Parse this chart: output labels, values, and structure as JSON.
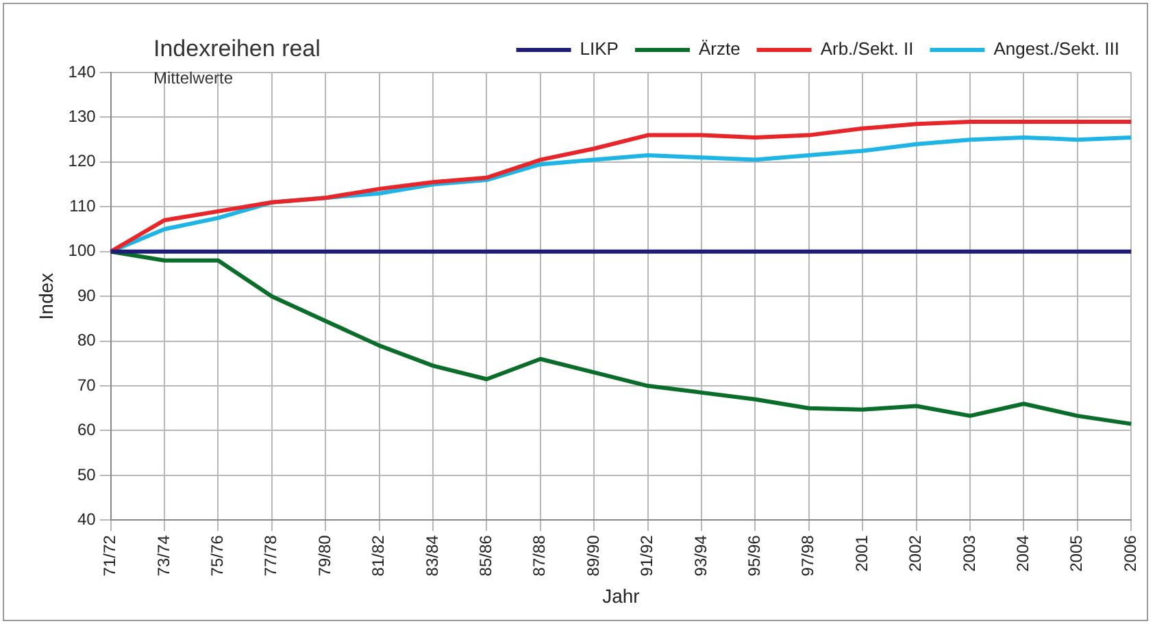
{
  "chart_data": {
    "type": "line",
    "title": "Indexreihen real",
    "subtitle": "Mittelwerte",
    "xlabel": "Jahr",
    "ylabel": "Index",
    "categories": [
      "71/72",
      "73/74",
      "75/76",
      "77/78",
      "79/80",
      "81/82",
      "83/84",
      "85/86",
      "87/88",
      "89/90",
      "91/92",
      "93/94",
      "95/96",
      "97/98",
      "2001",
      "2002",
      "2003",
      "2004",
      "2005",
      "2006"
    ],
    "series": [
      {
        "name": "LIKP",
        "color": "#1e1e78",
        "values": [
          100,
          100,
          100,
          100,
          100,
          100,
          100,
          100,
          100,
          100,
          100,
          100,
          100,
          100,
          100,
          100,
          100,
          100,
          100,
          100
        ]
      },
      {
        "name": "Ärzte",
        "color": "#0a6e2a",
        "values": [
          100,
          98,
          98,
          90,
          84.5,
          79,
          74.5,
          71.5,
          76,
          73,
          70,
          68.5,
          67,
          65,
          64.7,
          65.5,
          63.3,
          66,
          63.3,
          61.5
        ]
      },
      {
        "name": "Arb./Sekt. II",
        "color": "#e8262a",
        "values": [
          100,
          107,
          109,
          111,
          112,
          114,
          115.5,
          116.5,
          120.5,
          123,
          126,
          126,
          125.5,
          126,
          127.5,
          128.5,
          129,
          129,
          129,
          129
        ]
      },
      {
        "name": "Angest./Sekt. III",
        "color": "#1eb4e6",
        "values": [
          100,
          105,
          107.5,
          111,
          112,
          113,
          115,
          116,
          119.5,
          120.5,
          121.5,
          121,
          120.5,
          121.5,
          122.5,
          124,
          125,
          125.5,
          125,
          125.5
        ]
      }
    ],
    "ylim": [
      40,
      140
    ],
    "yticks": [
      40,
      50,
      60,
      70,
      80,
      90,
      100,
      110,
      120,
      130,
      140
    ],
    "grid": true,
    "legend": "top right",
    "marker": "none",
    "line_style": "solid"
  }
}
